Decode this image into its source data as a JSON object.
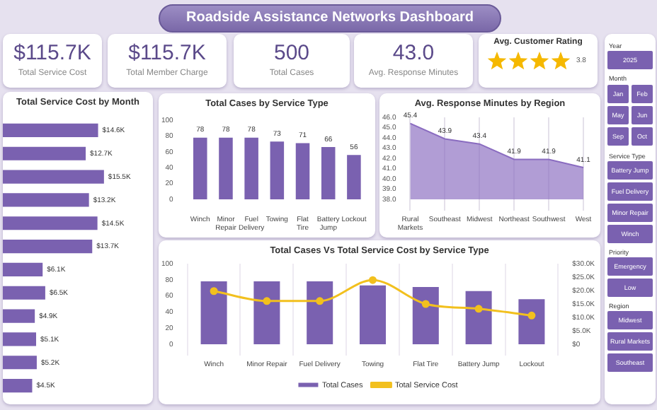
{
  "chart_data": [
    {
      "type": "other",
      "title": "Roadside Assistance Networks Dashboard",
      "categories": [
        "Total Service Cost",
        "Total Member Charge",
        "Total Cases",
        "Avg. Response Minutes",
        "Avg. Customer Rating"
      ],
      "value_labels": [
        "$115.7K",
        "$115.7K",
        "500",
        "43.0",
        "3.8"
      ]
    },
    {
      "type": "bar",
      "orientation": "horizontal",
      "title": "Total Service Cost by Month",
      "categories": [
        null,
        null,
        null,
        null,
        null,
        null,
        null,
        null,
        null,
        null,
        null,
        null
      ],
      "values": [
        14.6,
        12.7,
        15.5,
        13.2,
        14.5,
        13.7,
        6.1,
        6.5,
        4.9,
        5.1,
        5.2,
        4.5
      ],
      "value_labels": [
        "$14.6K",
        "$12.7K",
        "$15.5K",
        "$13.2K",
        "$14.5K",
        "$13.7K",
        "$6.1K",
        "$6.5K",
        "$4.9K",
        "$5.1K",
        "$5.2K",
        "$4.5K"
      ],
      "color": "#7a61b0"
    },
    {
      "type": "bar",
      "title": "Total Cases by Service Type",
      "categories": [
        "Winch",
        "Minor Repair",
        "Fuel Delivery",
        "Towing",
        "Flat Tire",
        "Battery Jump",
        "Lockout"
      ],
      "values": [
        78,
        78,
        78,
        73,
        71,
        66,
        56
      ],
      "color": "#7a61b0",
      "ylim": [
        0,
        100
      ],
      "yticks": [
        0,
        20,
        40,
        60,
        80,
        100
      ],
      "data_labels": true
    },
    {
      "type": "area",
      "title": "Avg. Response Minutes by Region",
      "categories": [
        "Rural Markets",
        "Southeast",
        "Midwest",
        "Northeast",
        "Southwest",
        "West"
      ],
      "values": [
        45.4,
        43.9,
        43.4,
        41.9,
        41.9,
        41.1
      ],
      "color": "#8a6cc0",
      "ylim": [
        38,
        46
      ],
      "yticks": [
        {
          "value": 38,
          "label": "38.0"
        },
        {
          "value": 39,
          "label": "39.0"
        },
        {
          "value": 40,
          "label": "40.0"
        },
        {
          "value": 41,
          "label": "41.0"
        },
        {
          "value": 42,
          "label": "42.0"
        },
        {
          "value": 43,
          "label": "43.0"
        },
        {
          "value": 44,
          "label": "44.0"
        },
        {
          "value": 45,
          "label": "45.0"
        },
        {
          "value": 46,
          "label": "46.0"
        }
      ],
      "grid": "x",
      "data_labels": true
    },
    {
      "type": "bar",
      "title": "Total Cases Vs Total Service Cost by Service Type",
      "categories": [
        "Winch",
        "Minor Repair",
        "Fuel Delivery",
        "Towing",
        "Flat Tire",
        "Battery Jump",
        "Lockout"
      ],
      "series": [
        {
          "name": "Total Cases",
          "type": "bar",
          "color": "#7a61b0",
          "values": [
            78,
            78,
            78,
            73,
            71,
            66,
            56
          ]
        },
        {
          "name": "Total Service Cost",
          "type": "line",
          "axis": "y2",
          "color": "#f2c01e",
          "marker": "circle",
          "values": [
            19.8,
            16.1,
            16.1,
            23.9,
            15.0,
            13.2,
            10.7
          ]
        }
      ],
      "ylim": [
        0,
        100
      ],
      "yticks": [
        0,
        20,
        40,
        60,
        80,
        100
      ],
      "y2lim": [
        0,
        30
      ],
      "y2ticks": [
        {
          "value": 0,
          "label": "$0"
        },
        {
          "value": 5,
          "label": "$5.0K"
        },
        {
          "value": 10,
          "label": "$10.0K"
        },
        {
          "value": 15,
          "label": "$15.0K"
        },
        {
          "value": 20,
          "label": "$20.0K"
        },
        {
          "value": 25,
          "label": "$25.0K"
        },
        {
          "value": 30,
          "label": "$30.0K"
        }
      ],
      "grid": "x",
      "legend": "bottom"
    },
    {
      "type": "other",
      "annotations": [
        "Year",
        "2025",
        "Month",
        "Jan",
        "Feb",
        "May",
        "Jun",
        "Sep",
        "Oct",
        "Service Type",
        "Battery Jump",
        "Fuel Delivery",
        "Minor Repair",
        "Winch",
        "Priority",
        "Emergency",
        "Low",
        "Region",
        "Midwest",
        "Rural Markets",
        "Southeast"
      ]
    }
  ]
}
